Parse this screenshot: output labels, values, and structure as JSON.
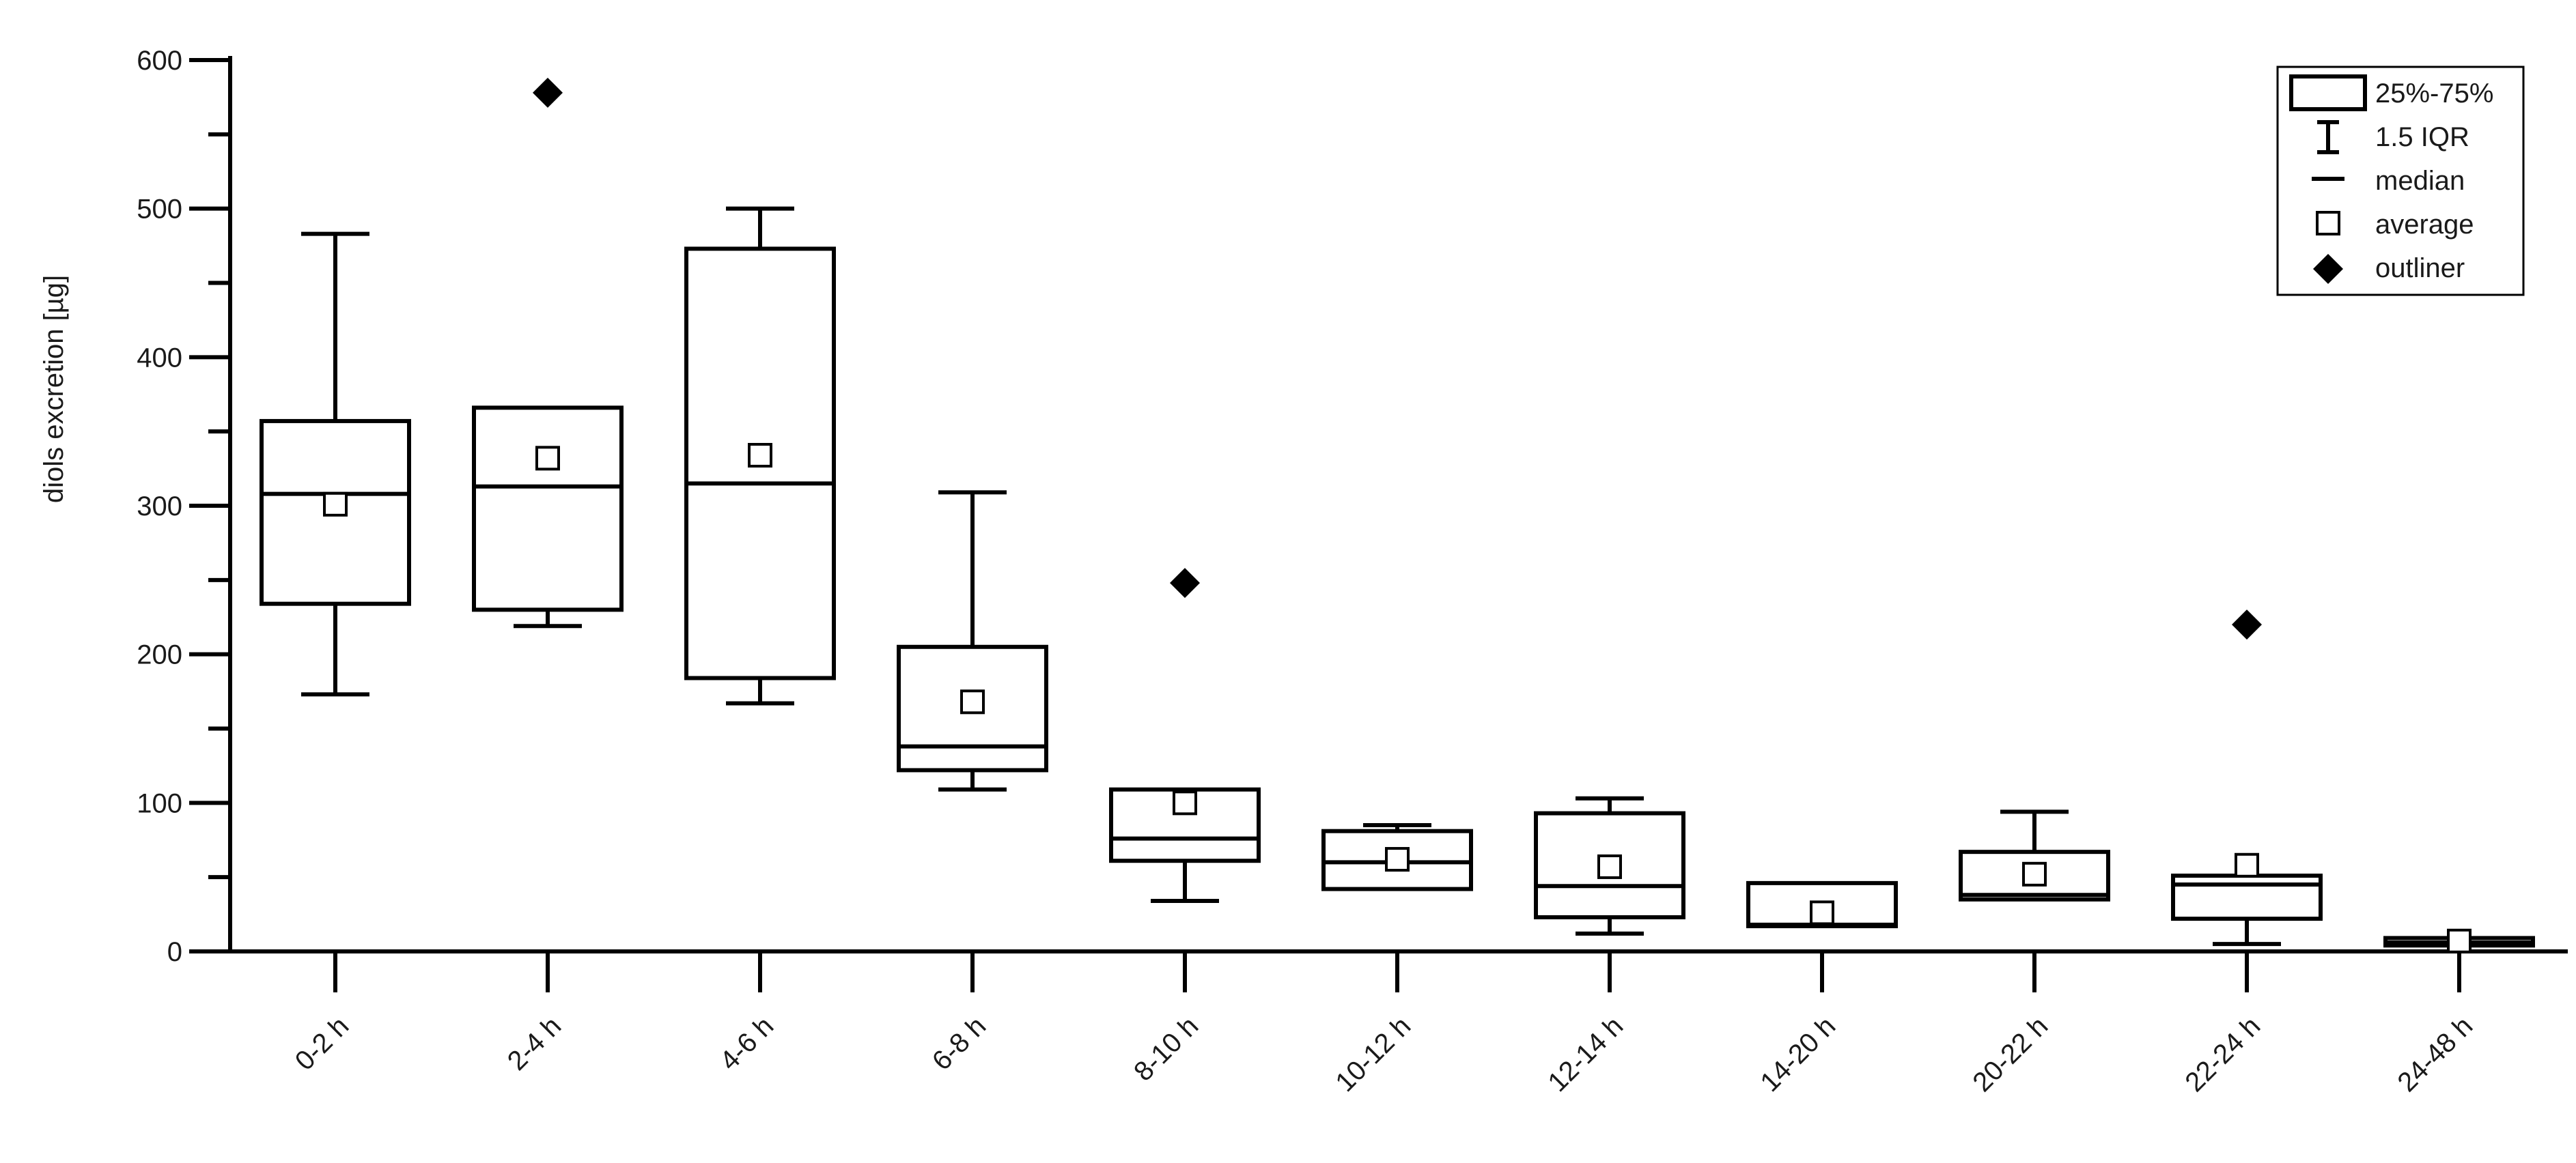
{
  "chart_data": {
    "type": "boxplot",
    "ylabel": "diols excretion [µg]",
    "xlabel": "",
    "title": "",
    "ylim": [
      0,
      600
    ],
    "yticks": [
      0,
      100,
      200,
      300,
      400,
      500,
      600
    ],
    "grid": false,
    "legend_position": "top-right",
    "categories": [
      "0-2 h",
      "2-4 h",
      "4-6 h",
      "6-8 h",
      "8-10 h",
      "10-12 h",
      "12-14 h",
      "14-20 h",
      "20-22 h",
      "22-24 h",
      "24-48 h"
    ],
    "boxes": [
      {
        "category": "0-2 h",
        "whisker_low": 173,
        "q1": 234,
        "median": 308,
        "q3": 357,
        "whisker_high": 483,
        "mean": 301,
        "outliers": []
      },
      {
        "category": "2-4 h",
        "whisker_low": 219,
        "q1": 230,
        "median": 313,
        "q3": 366,
        "whisker_high": 366,
        "mean": 332,
        "outliers": [
          578
        ]
      },
      {
        "category": "4-6 h",
        "whisker_low": 167,
        "q1": 184,
        "median": 315,
        "q3": 473,
        "whisker_high": 500,
        "mean": 334,
        "outliers": []
      },
      {
        "category": "6-8 h",
        "whisker_low": 109,
        "q1": 122,
        "median": 138,
        "q3": 205,
        "whisker_high": 309,
        "mean": 168,
        "outliers": []
      },
      {
        "category": "8-10 h",
        "whisker_low": 34,
        "q1": 61,
        "median": 76,
        "q3": 109,
        "whisker_high": 109,
        "mean": 100,
        "outliers": [
          248
        ]
      },
      {
        "category": "10-12 h",
        "whisker_low": 42,
        "q1": 42,
        "median": 60,
        "q3": 81,
        "whisker_high": 85,
        "mean": 62,
        "outliers": []
      },
      {
        "category": "12-14 h",
        "whisker_low": 12,
        "q1": 23,
        "median": 44,
        "q3": 93,
        "whisker_high": 103,
        "mean": 57,
        "outliers": []
      },
      {
        "category": "14-20 h",
        "whisker_low": 17,
        "q1": 17,
        "median": 18,
        "q3": 46,
        "whisker_high": 46,
        "mean": 26,
        "outliers": []
      },
      {
        "category": "20-22 h",
        "whisker_low": 35,
        "q1": 35,
        "median": 38,
        "q3": 67,
        "whisker_high": 94,
        "mean": 52,
        "outliers": []
      },
      {
        "category": "22-24 h",
        "whisker_low": 5,
        "q1": 22,
        "median": 45,
        "q3": 51,
        "whisker_high": 51,
        "mean": 58,
        "outliers": [
          220
        ]
      },
      {
        "category": "24-48 h",
        "whisker_low": 4,
        "q1": 4,
        "median": 6,
        "q3": 9,
        "whisker_high": 9,
        "mean": 7,
        "outliers": []
      }
    ],
    "legend": {
      "box": "25%-75%",
      "whisker": "1.5 IQR",
      "median": "median",
      "mean": "average",
      "outlier": "outliner"
    },
    "colors": {
      "stroke": "#000000",
      "text": "#1a1a1a",
      "mean_fill": "#ffffff",
      "outlier_fill": "#000000"
    }
  }
}
